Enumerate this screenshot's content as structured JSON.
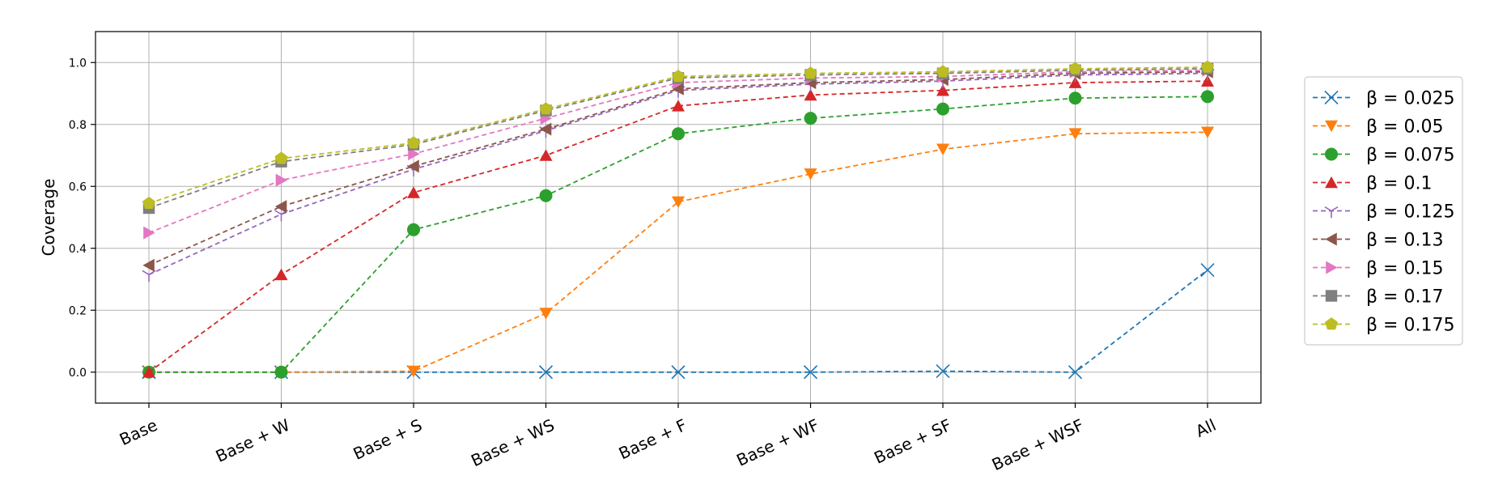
{
  "chart_data": {
    "type": "line",
    "title": "",
    "xlabel": "",
    "ylabel": "Coverage",
    "categories": [
      "Base",
      "Base + W",
      "Base + S",
      "Base + WS",
      "Base + F",
      "Base + WF",
      "Base + SF",
      "Base + WSF",
      "All"
    ],
    "ylim": [
      -0.1,
      1.1
    ],
    "yticks": [
      "0.0",
      "0.2",
      "0.4",
      "0.6",
      "0.8",
      "1.0"
    ],
    "grid": true,
    "legend_position": "right, outside plot",
    "series": [
      {
        "name": "β = 0.025",
        "color": "#1f77b4",
        "marker": "x",
        "values": [
          0.0,
          0.0,
          0.0,
          0.0,
          0.0,
          0.0,
          0.003,
          0.0,
          0.33
        ]
      },
      {
        "name": "β = 0.05",
        "color": "#ff7f0e",
        "marker": "triangle-down",
        "values": [
          0.0,
          0.0,
          0.003,
          0.19,
          0.55,
          0.64,
          0.72,
          0.77,
          0.775
        ]
      },
      {
        "name": "β = 0.075",
        "color": "#2ca02c",
        "marker": "circle",
        "values": [
          0.0,
          0.0,
          0.46,
          0.57,
          0.77,
          0.82,
          0.85,
          0.885,
          0.89
        ]
      },
      {
        "name": "β = 0.1",
        "color": "#d62728",
        "marker": "triangle-up",
        "values": [
          0.0,
          0.315,
          0.58,
          0.7,
          0.86,
          0.895,
          0.91,
          0.935,
          0.94
        ]
      },
      {
        "name": "β = 0.125",
        "color": "#9467bd",
        "marker": "tri-down",
        "values": [
          0.315,
          0.51,
          0.655,
          0.78,
          0.91,
          0.93,
          0.94,
          0.96,
          0.965
        ]
      },
      {
        "name": "β = 0.13",
        "color": "#8c564b",
        "marker": "triangle-left",
        "values": [
          0.345,
          0.535,
          0.665,
          0.785,
          0.915,
          0.935,
          0.945,
          0.965,
          0.97
        ]
      },
      {
        "name": "β = 0.15",
        "color": "#e377c2",
        "marker": "triangle-right",
        "values": [
          0.45,
          0.62,
          0.705,
          0.82,
          0.935,
          0.95,
          0.955,
          0.97,
          0.975
        ]
      },
      {
        "name": "β = 0.17",
        "color": "#7f7f7f",
        "marker": "square",
        "values": [
          0.53,
          0.68,
          0.735,
          0.845,
          0.95,
          0.96,
          0.965,
          0.975,
          0.98
        ]
      },
      {
        "name": "β = 0.175",
        "color": "#bcbd22",
        "marker": "pentagon",
        "values": [
          0.545,
          0.69,
          0.74,
          0.85,
          0.955,
          0.965,
          0.97,
          0.98,
          0.985
        ]
      }
    ]
  }
}
